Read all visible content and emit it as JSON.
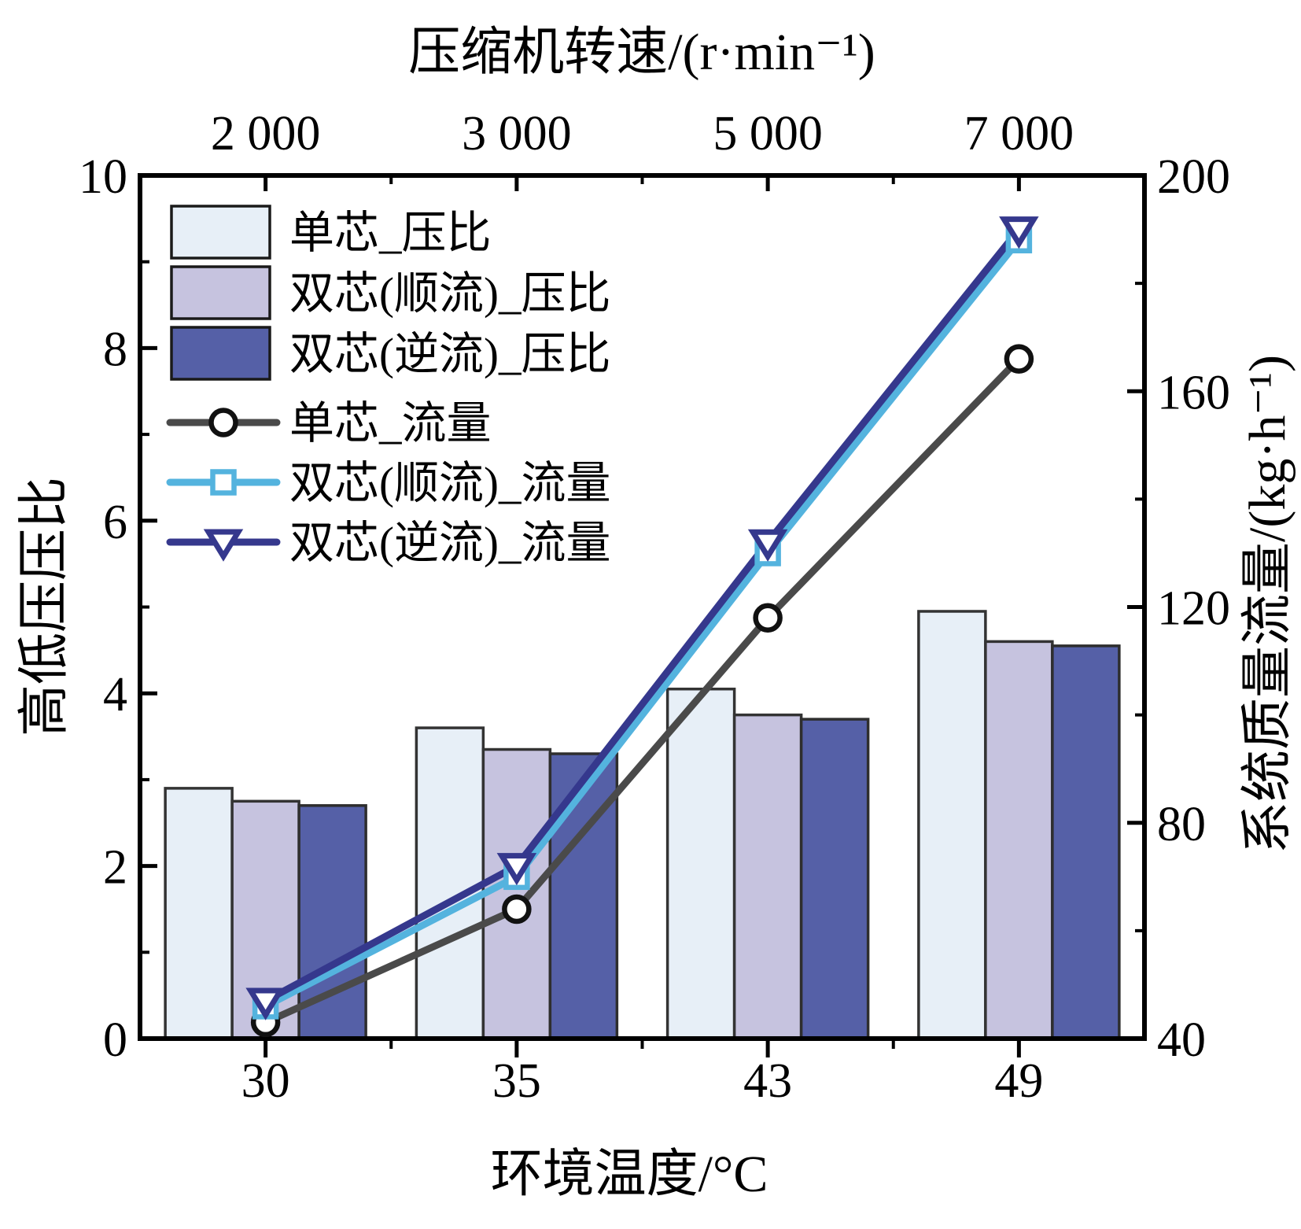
{
  "chart_data": {
    "type": "combo-bar-line",
    "categories": [
      "30",
      "35",
      "43",
      "49"
    ],
    "top_categories": [
      "2 000",
      "3 000",
      "5 000",
      "7 000"
    ],
    "bar_series": [
      {
        "name": "单芯_压比",
        "values": [
          2.9,
          3.6,
          4.05,
          4.95
        ],
        "fill": "#e7eff7",
        "stroke": "#333333",
        "axis": "left"
      },
      {
        "name": "双芯(顺流)_压比",
        "values": [
          2.75,
          3.35,
          3.75,
          4.6
        ],
        "fill": "#c6c3df",
        "stroke": "#333333",
        "axis": "left"
      },
      {
        "name": "双芯(逆流)_压比",
        "values": [
          2.7,
          3.3,
          3.7,
          4.55
        ],
        "fill": "#5560a7",
        "stroke": "#2e2e2e",
        "axis": "left"
      }
    ],
    "line_series": [
      {
        "name": "单芯_流量",
        "values": [
          43,
          64,
          118,
          166
        ],
        "color": "#4a4a4a",
        "marker": "circle",
        "marker_stroke": "#111111",
        "axis": "right"
      },
      {
        "name": "双芯(顺流)_流量",
        "values": [
          46,
          70,
          130,
          188
        ],
        "color": "#54b3de",
        "marker": "square",
        "marker_stroke": "#54b3de",
        "axis": "right"
      },
      {
        "name": "双芯(逆流)_流量",
        "values": [
          47,
          72,
          132,
          190
        ],
        "color": "#35388d",
        "marker": "triangle-down",
        "marker_stroke": "#35388d",
        "axis": "right"
      }
    ],
    "axes": {
      "top": {
        "title": "压缩机转速/(r·min⁻¹)"
      },
      "bottom": {
        "title": "环境温度/°C"
      },
      "left": {
        "title": "高低压压比",
        "min": 0,
        "max": 10,
        "major": 2,
        "minor": 1,
        "ticks": [
          "0",
          "2",
          "4",
          "6",
          "8",
          "10"
        ]
      },
      "right": {
        "title": "系统质量流量/(kg·h⁻¹)",
        "min": 40,
        "max": 200,
        "major": 40,
        "minor": 20,
        "ticks": [
          "40",
          "80",
          "120",
          "160",
          "200"
        ]
      }
    },
    "legend": {
      "entries": [
        "单芯_压比",
        "双芯(顺流)_压比",
        "双芯(逆流)_压比",
        "单芯_流量",
        "双芯(顺流)_流量",
        "双芯(逆流)_流量"
      ],
      "position": "top-left-inside"
    },
    "colors": {
      "axis": "#000000",
      "background": "#ffffff"
    },
    "grid": "off"
  }
}
